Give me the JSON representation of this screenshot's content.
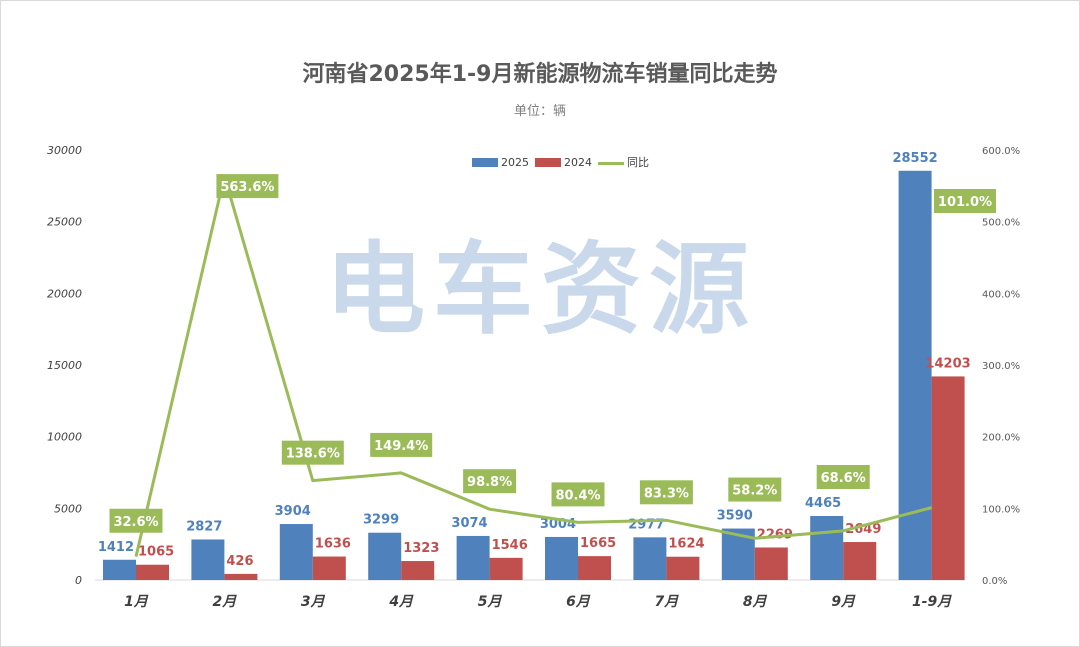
{
  "chart_data": {
    "type": "bar",
    "title": "河南省2025年1-9月新能源物流车销量同比走势",
    "subtitle": "单位：辆",
    "categories": [
      "1月",
      "2月",
      "3月",
      "4月",
      "5月",
      "6月",
      "7月",
      "8月",
      "9月",
      "1-9月"
    ],
    "series": [
      {
        "name": "2025",
        "type": "bar",
        "axis": "left",
        "color": "#4f81bd",
        "values": [
          1412,
          2827,
          3904,
          3299,
          3074,
          3004,
          2977,
          3590,
          4465,
          28552
        ]
      },
      {
        "name": "2024",
        "type": "bar",
        "axis": "left",
        "color": "#c0504d",
        "values": [
          1065,
          426,
          1636,
          1323,
          1546,
          1665,
          1624,
          2269,
          2649,
          14203
        ]
      },
      {
        "name": "同比",
        "type": "line",
        "axis": "right",
        "color": "#9bbb59",
        "values": [
          32.6,
          563.6,
          138.6,
          149.4,
          98.8,
          80.4,
          83.3,
          58.2,
          68.6,
          101.0
        ],
        "labels": [
          "32.6%",
          "563.6%",
          "138.6%",
          "149.4%",
          "98.8%",
          "80.4%",
          "83.3%",
          "58.2%",
          "68.6%",
          "101.0%"
        ]
      }
    ],
    "y_left": {
      "lim": [
        0,
        30000
      ],
      "ticks": [
        "0",
        "5000",
        "10000",
        "15000",
        "20000",
        "25000",
        "30000"
      ]
    },
    "y_right": {
      "lim": [
        0,
        600
      ],
      "ticks": [
        "0.0%",
        "100.0%",
        "200.0%",
        "300.0%",
        "400.0%",
        "500.0%",
        "600.0%"
      ]
    },
    "legend": {
      "position": "top",
      "items": [
        "2025",
        "2024",
        "同比"
      ]
    },
    "grid": false
  },
  "watermark": "电车资源"
}
